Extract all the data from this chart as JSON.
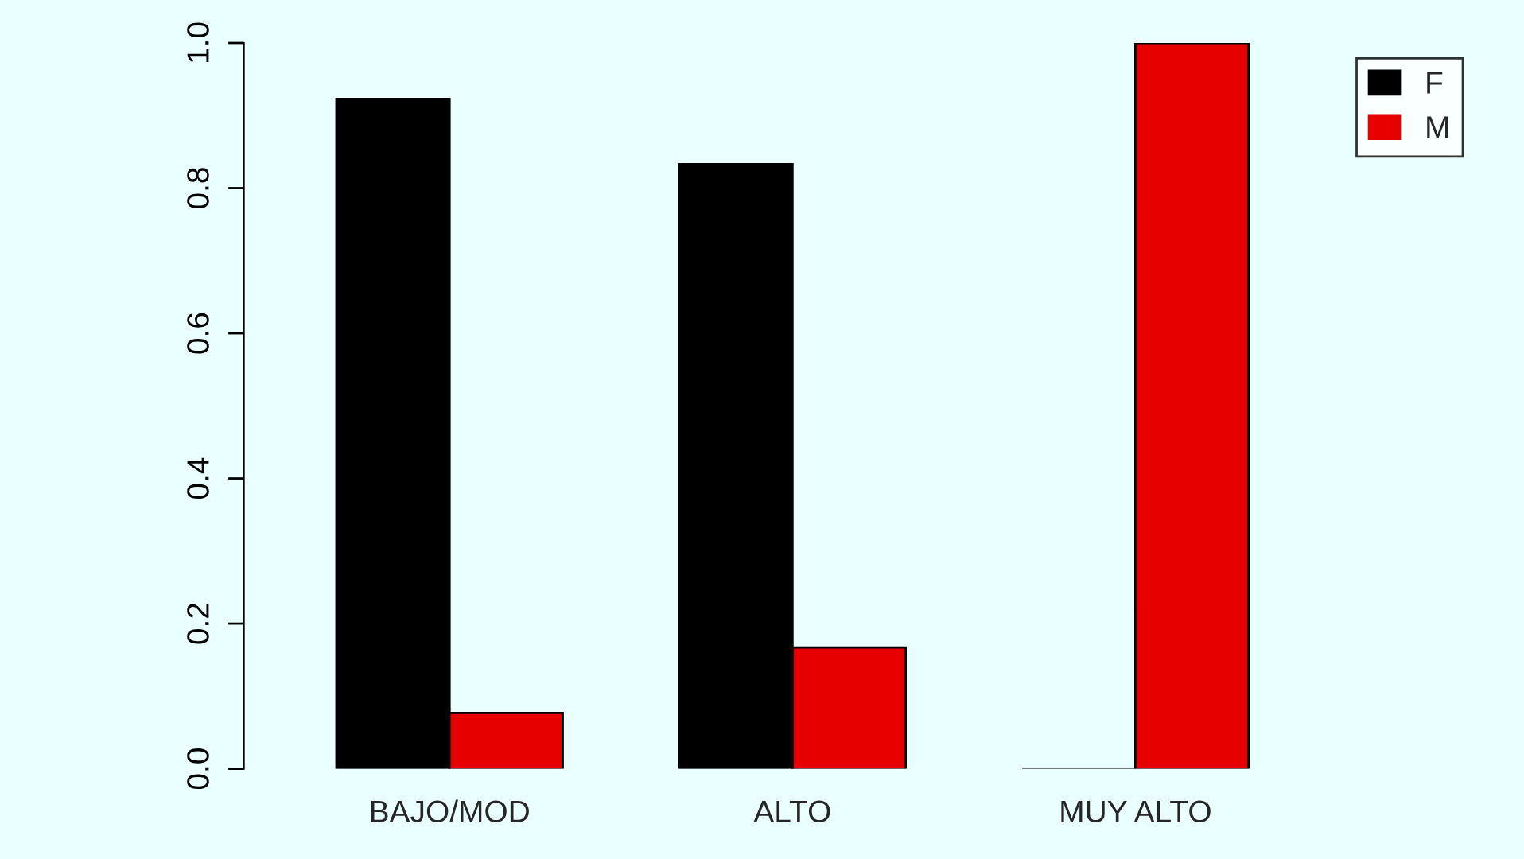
{
  "chart_data": {
    "type": "bar",
    "categories": [
      "BAJO/MOD",
      "ALTO",
      "MUY ALTO"
    ],
    "series": [
      {
        "name": "F",
        "color": "#000000",
        "values": [
          0.923,
          0.833,
          0
        ]
      },
      {
        "name": "M",
        "color": "#e60000",
        "values": [
          0.077,
          0.167,
          1.0
        ]
      }
    ],
    "ylim": [
      0,
      1.0
    ],
    "yticks": [
      {
        "value": 0,
        "label": "0.0"
      },
      {
        "value": 0.2,
        "label": "0.2"
      },
      {
        "value": 0.4,
        "label": "0.4"
      },
      {
        "value": 0.6,
        "label": "0.6"
      },
      {
        "value": 0.8,
        "label": "0.8"
      },
      {
        "value": 1.0,
        "label": "1.0"
      }
    ],
    "grid": false,
    "legend": "top right"
  }
}
